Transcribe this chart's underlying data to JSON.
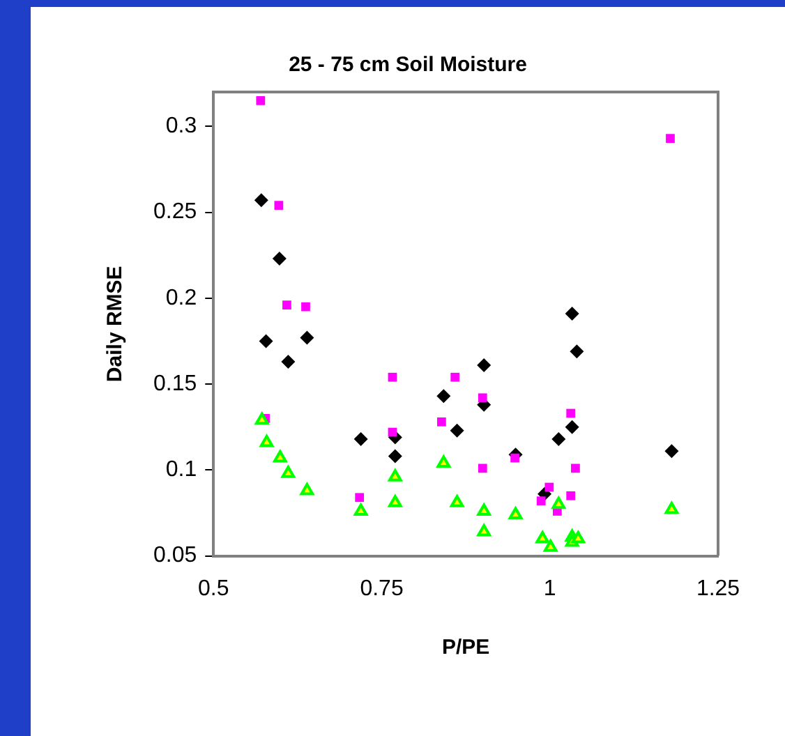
{
  "chart_data": {
    "type": "scatter",
    "title": "25 - 75 cm Soil Moisture",
    "xlabel": "P/PE",
    "ylabel": "Daily RMSE",
    "xlim": [
      0.5,
      1.25
    ],
    "xticks": [
      0.5,
      0.75,
      1,
      1.25
    ],
    "ylim": [
      0.05,
      0.32
    ],
    "yticks": [
      0.05,
      0.1,
      0.15,
      0.2,
      0.25,
      0.3
    ],
    "grid": false,
    "legend": false,
    "series": [
      {
        "color": "#000000",
        "marker": "diamond",
        "x": [
          0.571,
          0.598,
          0.578,
          0.639,
          0.611,
          0.719,
          0.77,
          0.77,
          0.842,
          0.862,
          0.902,
          0.902,
          0.949,
          0.992,
          1.013,
          1.033,
          1.033,
          1.04,
          1.181
        ],
        "values": [
          0.257,
          0.223,
          0.175,
          0.177,
          0.163,
          0.118,
          0.119,
          0.108,
          0.143,
          0.123,
          0.161,
          0.138,
          0.109,
          0.086,
          0.118,
          0.125,
          0.191,
          0.169,
          0.111
        ]
      },
      {
        "color": "#ff00ff",
        "marker": "square",
        "x": [
          0.57,
          0.597,
          0.609,
          0.637,
          0.577,
          0.717,
          0.766,
          0.766,
          0.859,
          0.839,
          0.9,
          0.9,
          0.948,
          0.999,
          0.987,
          1.011,
          1.031,
          1.038,
          1.031,
          1.179
        ],
        "values": [
          0.315,
          0.254,
          0.196,
          0.195,
          0.13,
          0.084,
          0.154,
          0.122,
          0.154,
          0.128,
          0.142,
          0.101,
          0.107,
          0.09,
          0.082,
          0.076,
          0.133,
          0.101,
          0.085,
          0.293
        ]
      },
      {
        "color": "#00ff00",
        "marker": "triangle",
        "x": [
          0.572,
          0.579,
          0.599,
          0.611,
          0.639,
          0.719,
          0.77,
          0.77,
          0.842,
          0.862,
          0.902,
          0.902,
          0.949,
          0.989,
          1.001,
          1.013,
          1.033,
          1.033,
          1.042,
          1.181
        ],
        "values": [
          0.129,
          0.116,
          0.107,
          0.098,
          0.088,
          0.076,
          0.096,
          0.081,
          0.104,
          0.081,
          0.076,
          0.064,
          0.074,
          0.06,
          0.055,
          0.08,
          0.061,
          0.058,
          0.06,
          0.077
        ]
      }
    ]
  }
}
